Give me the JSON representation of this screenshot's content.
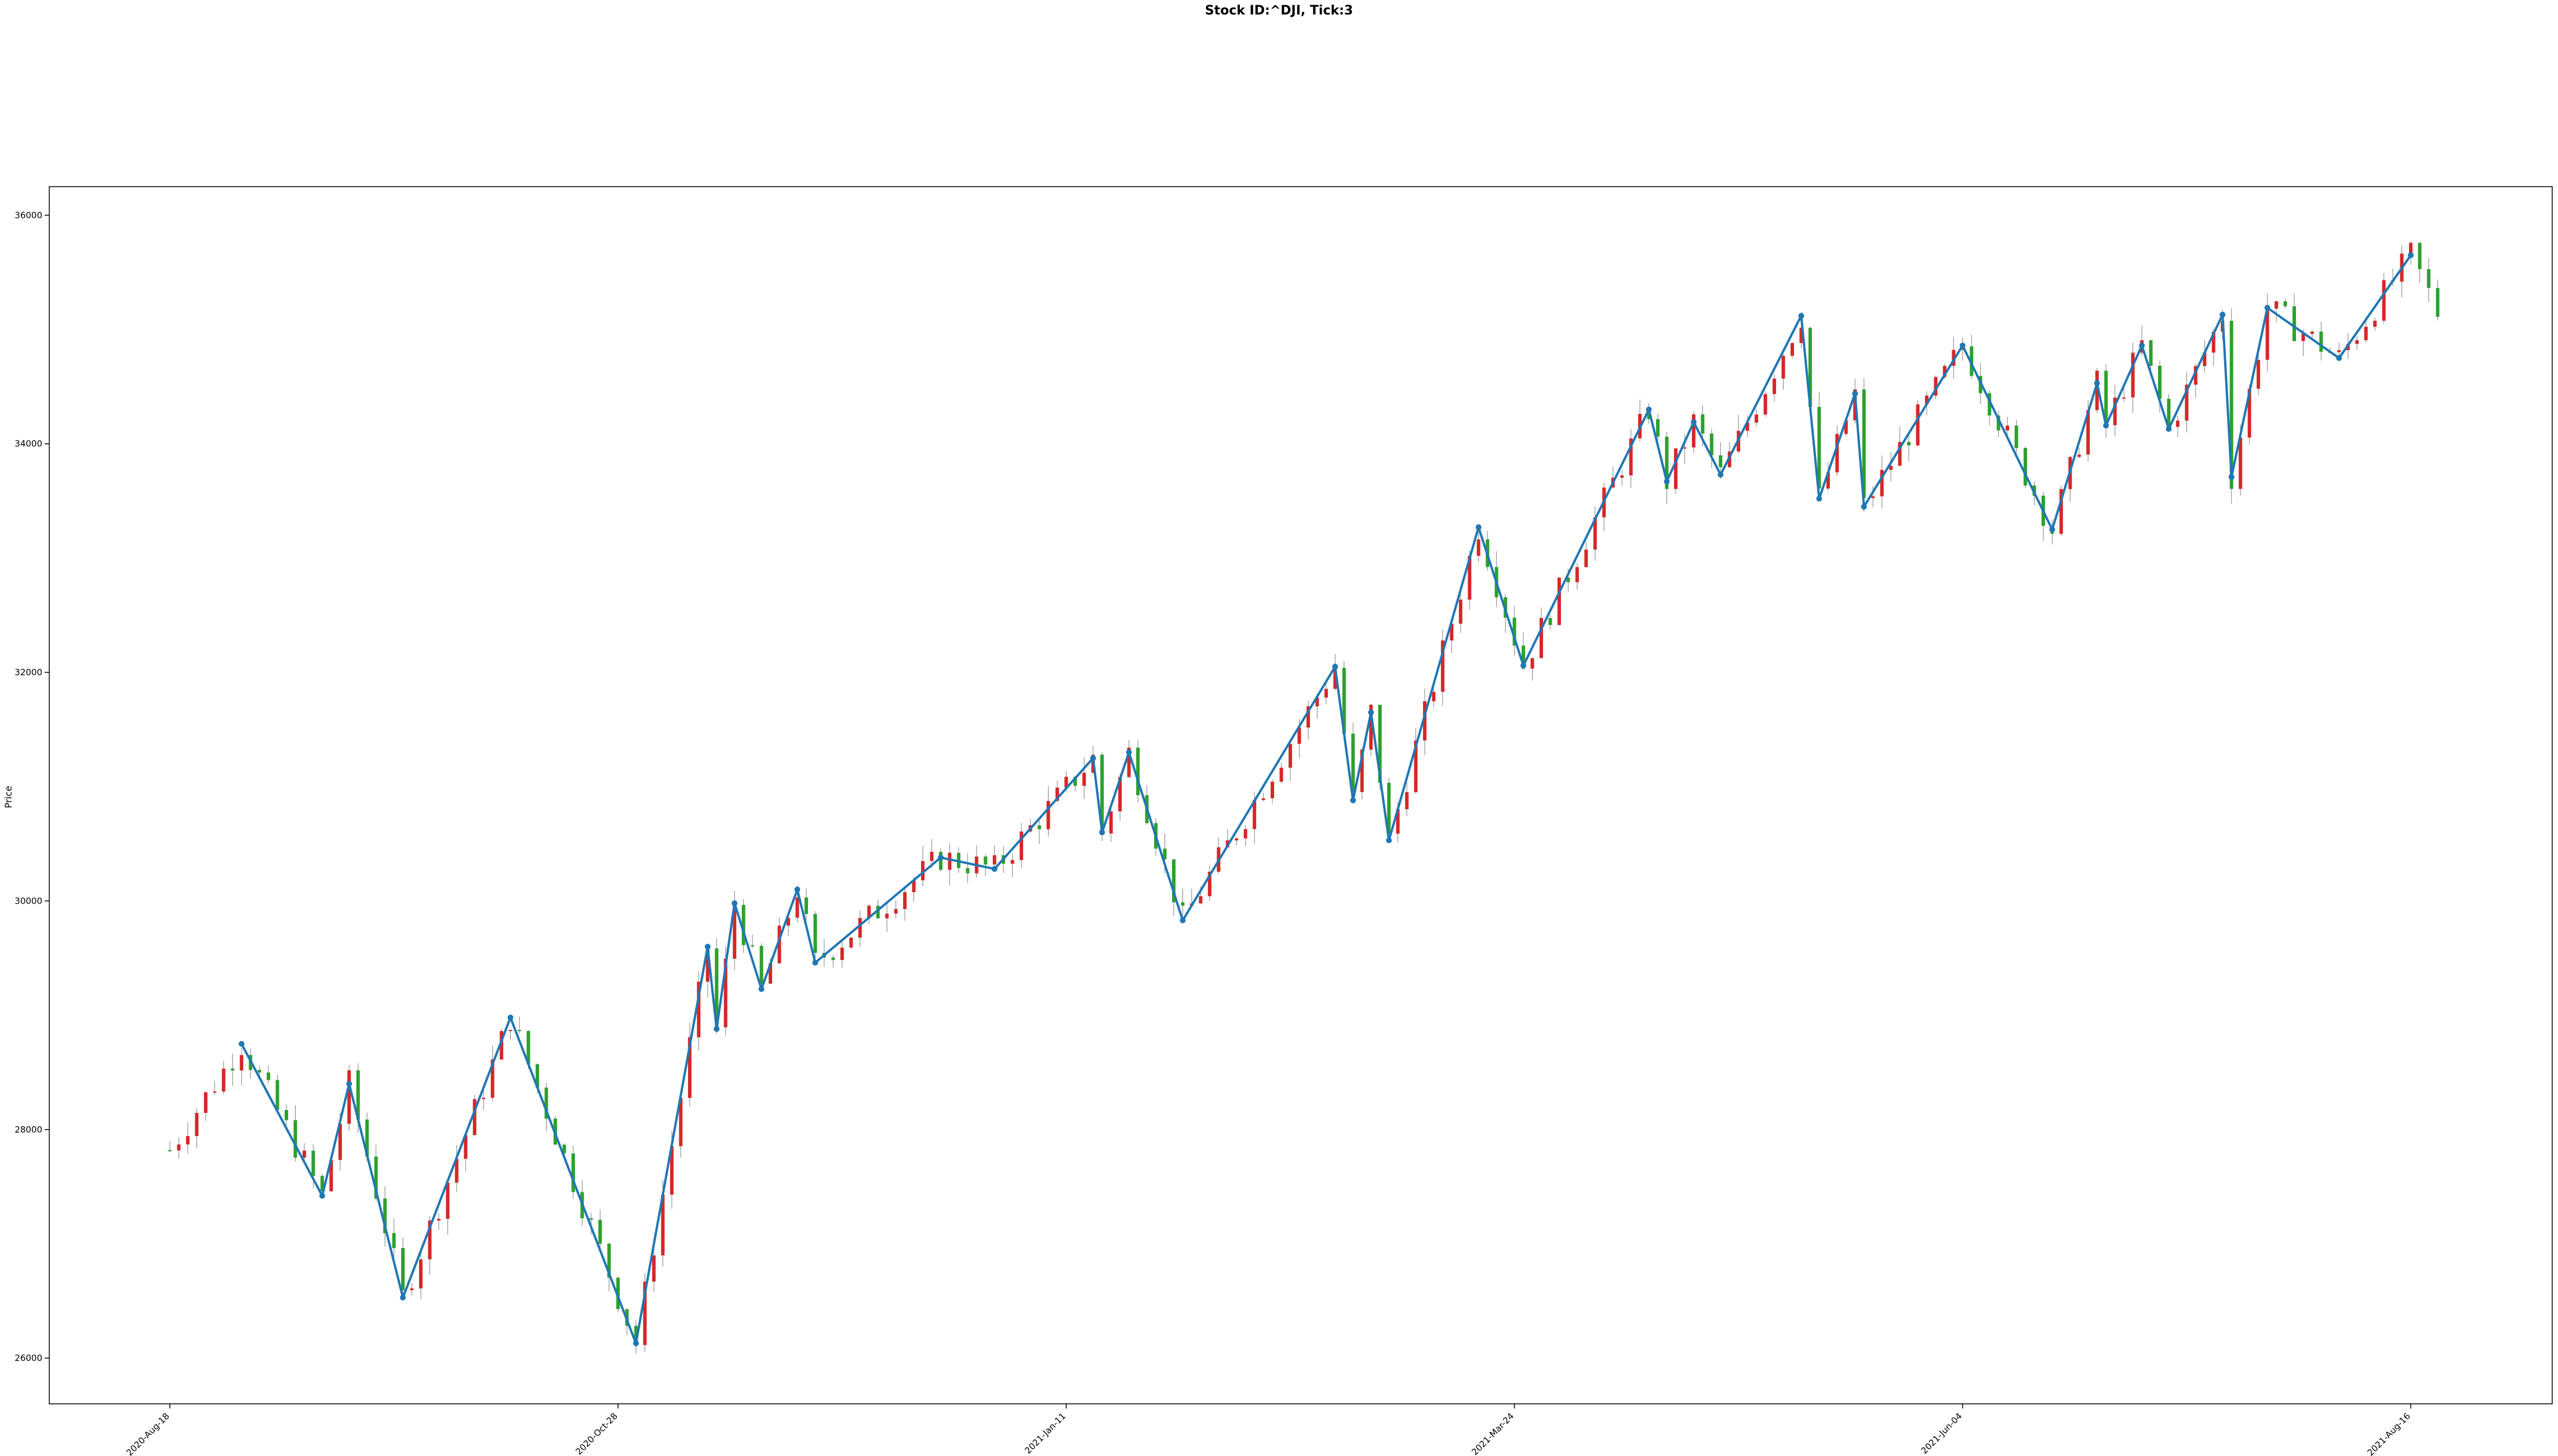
{
  "chart_data": {
    "type": "candlestick",
    "title": "Stock ID:^DJI, Tick:3",
    "xlabel": "",
    "ylabel": "Price",
    "ylim": [
      25600,
      36250
    ],
    "yticks": [
      26000,
      28000,
      30000,
      32000,
      34000,
      36000
    ],
    "yticklabels": [
      "26000",
      "28000",
      "30000",
      "32000",
      "34000",
      "36000"
    ],
    "xticks": [
      {
        "label": "2020-Aug-18",
        "index": 0
      },
      {
        "label": "2020-Oct-28",
        "index": 50
      },
      {
        "label": "2021-Jan-11",
        "index": 100
      },
      {
        "label": "2021-Mar-24",
        "index": 150
      },
      {
        "label": "2021-Jun-04",
        "index": 200
      },
      {
        "label": "2021-Aug-16",
        "index": 250
      }
    ],
    "n_bars": 254,
    "grid": false,
    "colors": {
      "up": "#d62728",
      "down": "#2ca02c",
      "wick": "#808080",
      "zigzag": "#1f77b4"
    },
    "zigzag": [
      {
        "i": 8,
        "v": 28750
      },
      {
        "i": 17,
        "v": 27420
      },
      {
        "i": 20,
        "v": 28400
      },
      {
        "i": 26,
        "v": 26530
      },
      {
        "i": 38,
        "v": 28980
      },
      {
        "i": 52,
        "v": 26130
      },
      {
        "i": 60,
        "v": 29600
      },
      {
        "i": 61,
        "v": 28880
      },
      {
        "i": 63,
        "v": 29980
      },
      {
        "i": 66,
        "v": 29230
      },
      {
        "i": 70,
        "v": 30100
      },
      {
        "i": 72,
        "v": 29460
      },
      {
        "i": 86,
        "v": 30380
      },
      {
        "i": 92,
        "v": 30280
      },
      {
        "i": 103,
        "v": 31250
      },
      {
        "i": 104,
        "v": 30600
      },
      {
        "i": 107,
        "v": 31300
      },
      {
        "i": 113,
        "v": 29830
      },
      {
        "i": 130,
        "v": 32050
      },
      {
        "i": 132,
        "v": 30880
      },
      {
        "i": 134,
        "v": 31650
      },
      {
        "i": 136,
        "v": 30530
      },
      {
        "i": 146,
        "v": 33270
      },
      {
        "i": 151,
        "v": 32060
      },
      {
        "i": 165,
        "v": 34300
      },
      {
        "i": 167,
        "v": 33670
      },
      {
        "i": 170,
        "v": 34190
      },
      {
        "i": 173,
        "v": 33730
      },
      {
        "i": 182,
        "v": 35120
      },
      {
        "i": 184,
        "v": 33520
      },
      {
        "i": 188,
        "v": 34440
      },
      {
        "i": 189,
        "v": 33450
      },
      {
        "i": 200,
        "v": 34860
      },
      {
        "i": 210,
        "v": 33250
      },
      {
        "i": 215,
        "v": 34530
      },
      {
        "i": 216,
        "v": 34160
      },
      {
        "i": 220,
        "v": 34860
      },
      {
        "i": 223,
        "v": 34130
      },
      {
        "i": 229,
        "v": 35130
      },
      {
        "i": 230,
        "v": 33710
      },
      {
        "i": 234,
        "v": 35190
      },
      {
        "i": 242,
        "v": 34750
      },
      {
        "i": 250,
        "v": 35650
      }
    ]
  }
}
